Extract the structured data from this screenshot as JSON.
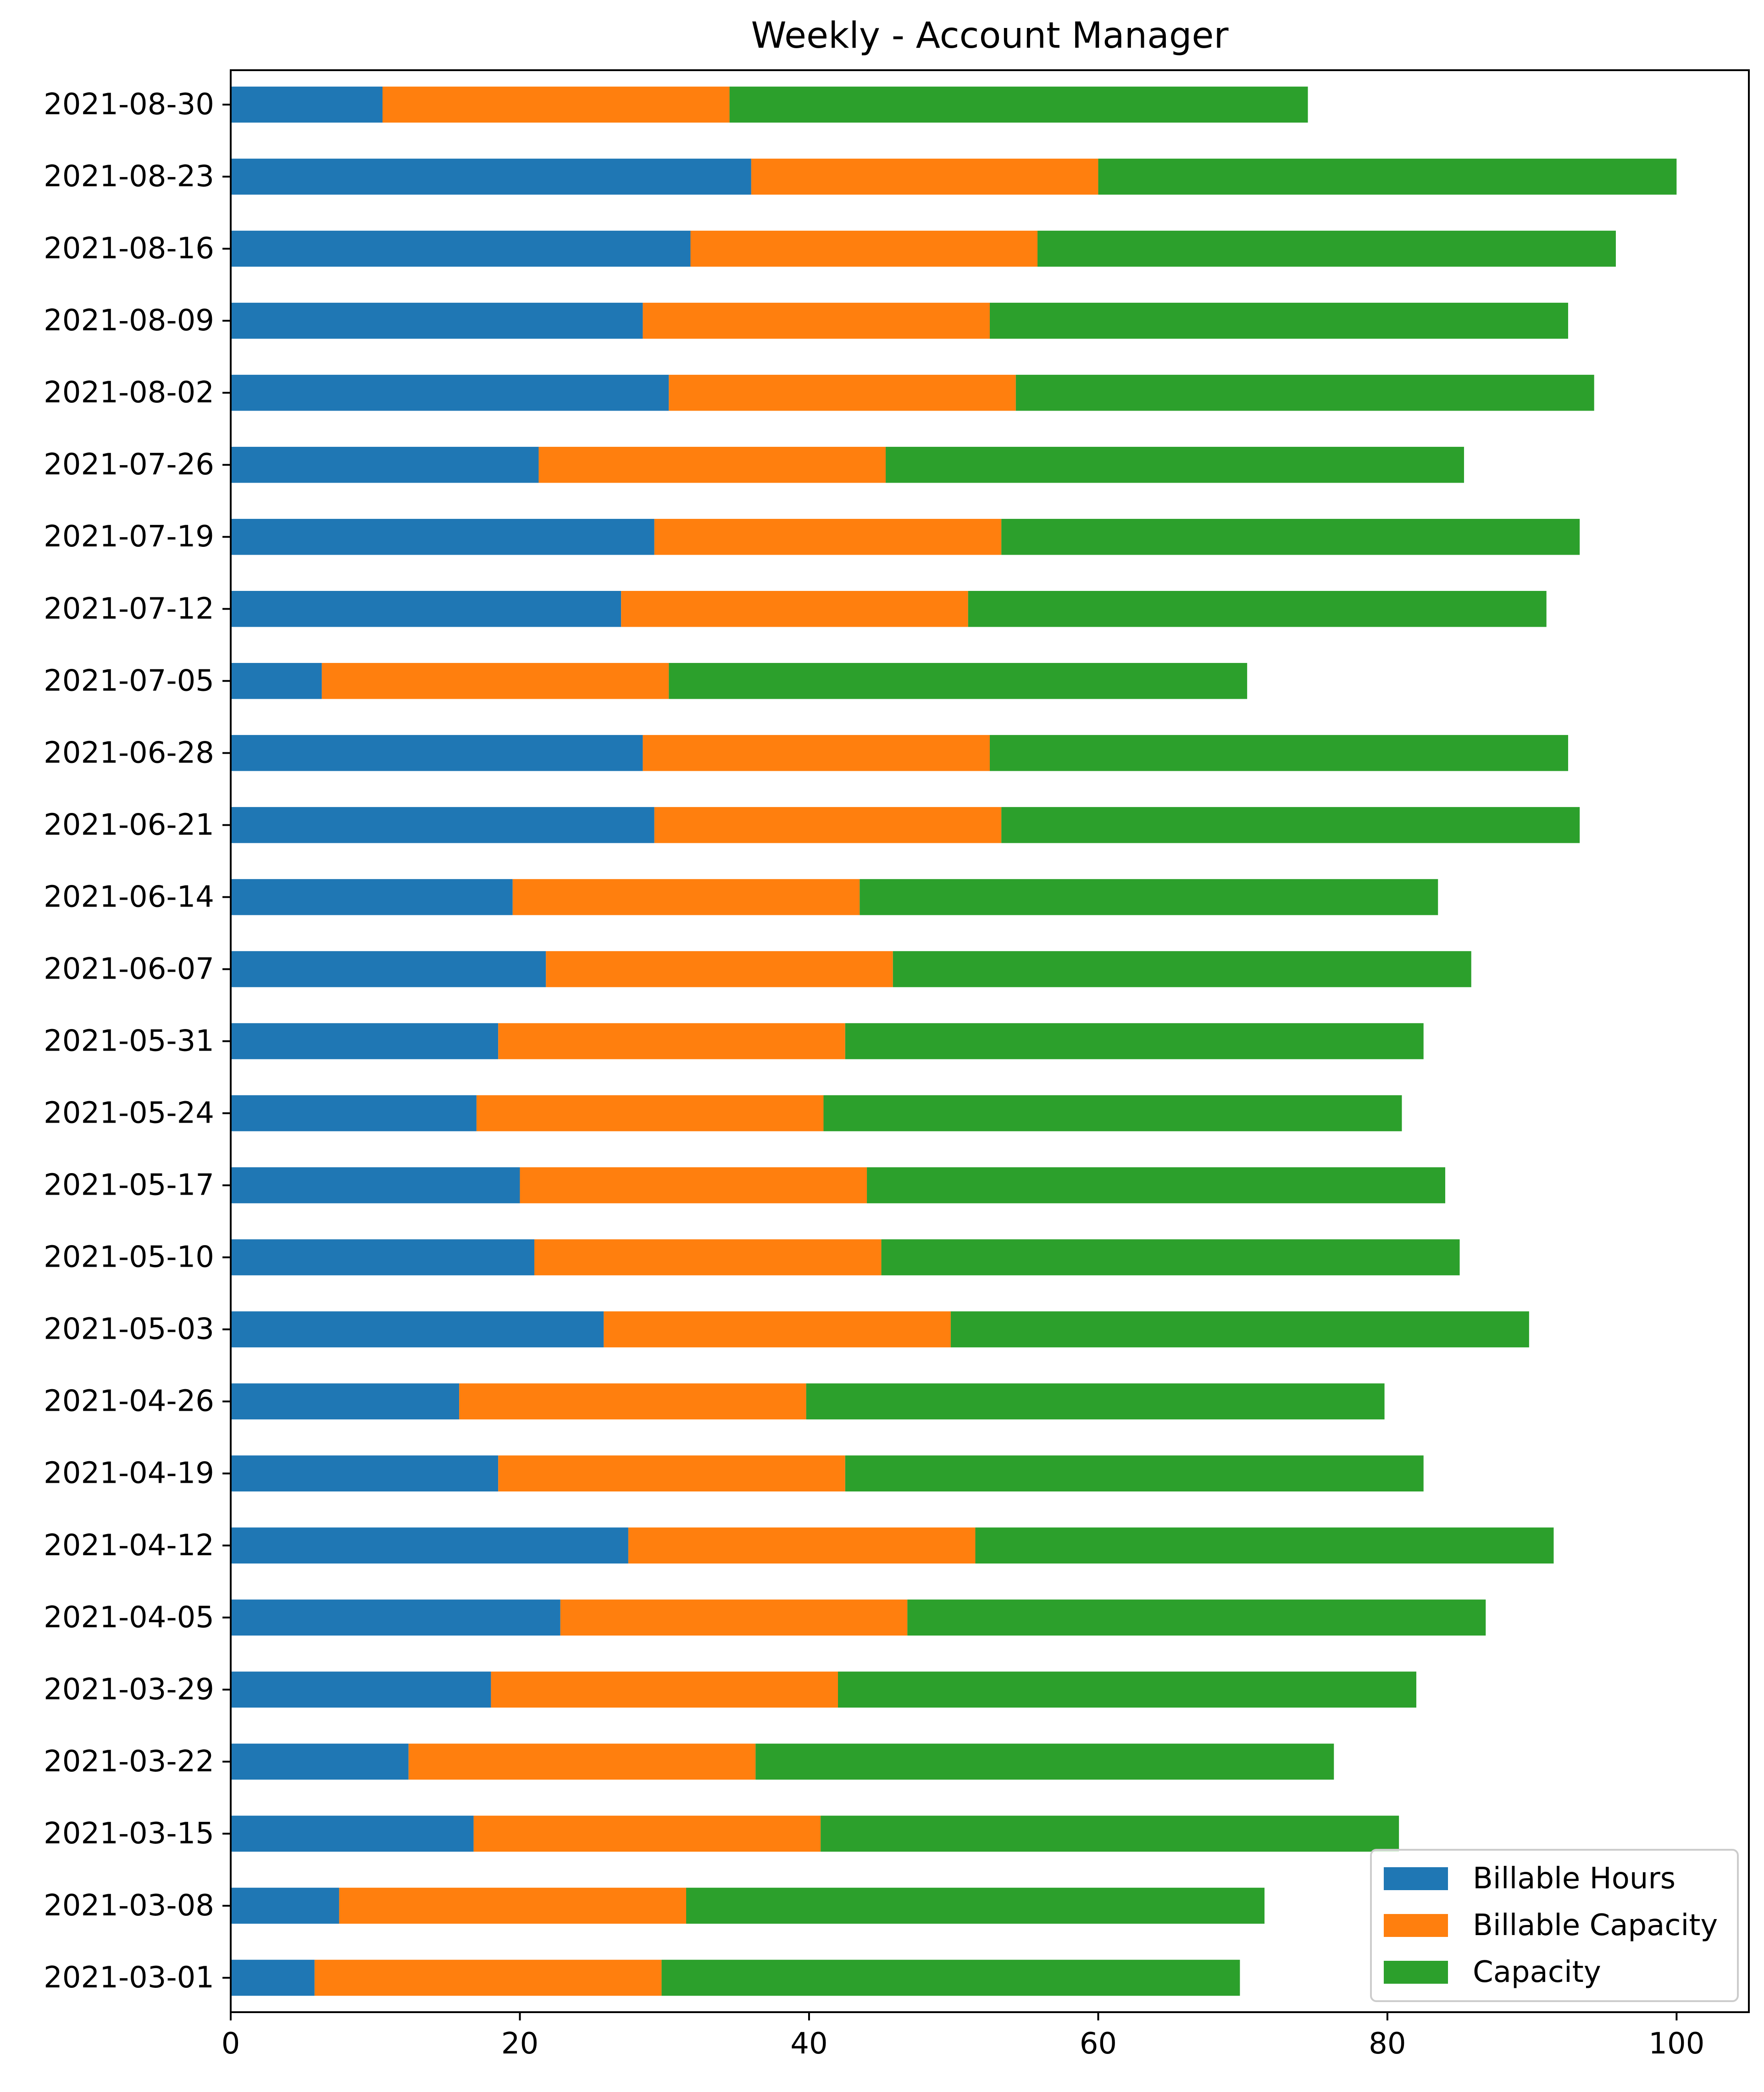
{
  "chart_data": {
    "type": "bar",
    "orientation": "horizontal",
    "stacked": true,
    "title": "Weekly - Account Manager",
    "xlabel": "",
    "ylabel": "",
    "xlim": [
      0,
      105
    ],
    "xticks": [
      "0",
      "20",
      "40",
      "60",
      "80",
      "100"
    ],
    "grid": false,
    "legend_position": "lower-right",
    "categories": [
      "2021-08-30",
      "2021-08-23",
      "2021-08-16",
      "2021-08-09",
      "2021-08-02",
      "2021-07-26",
      "2021-07-19",
      "2021-07-12",
      "2021-07-05",
      "2021-06-28",
      "2021-06-21",
      "2021-06-14",
      "2021-06-07",
      "2021-05-31",
      "2021-05-24",
      "2021-05-17",
      "2021-05-10",
      "2021-05-03",
      "2021-04-26",
      "2021-04-19",
      "2021-04-12",
      "2021-04-05",
      "2021-03-29",
      "2021-03-22",
      "2021-03-15",
      "2021-03-08",
      "2021-03-01"
    ],
    "series": [
      {
        "name": "Billable Hours",
        "color": "#1f77b4",
        "values": [
          10.5,
          36,
          31.8,
          28.5,
          30.3,
          21.3,
          29.3,
          27,
          6.3,
          28.5,
          29.3,
          19.5,
          21.8,
          18.5,
          17,
          20,
          21,
          25.8,
          15.8,
          18.5,
          27.5,
          22.8,
          18,
          12.3,
          16.8,
          7.5,
          5.8
        ]
      },
      {
        "name": "Billable Capacity",
        "color": "#ff7f0e",
        "values": [
          24,
          24,
          24,
          24,
          24,
          24,
          24,
          24,
          24,
          24,
          24,
          24,
          24,
          24,
          24,
          24,
          24,
          24,
          24,
          24,
          24,
          24,
          24,
          24,
          24,
          24,
          24
        ]
      },
      {
        "name": "Capacity",
        "color": "#2ca02c",
        "values": [
          40,
          40,
          40,
          40,
          40,
          40,
          40,
          40,
          40,
          40,
          40,
          40,
          40,
          40,
          40,
          40,
          40,
          40,
          40,
          40,
          40,
          40,
          40,
          40,
          40,
          40,
          40
        ]
      }
    ]
  }
}
